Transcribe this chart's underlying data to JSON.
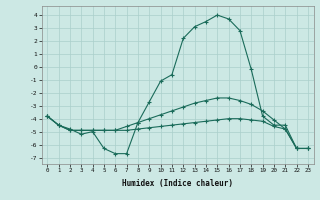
{
  "xlabel": "Humidex (Indice chaleur)",
  "background_color": "#cce8e4",
  "grid_color": "#aacfcb",
  "line_color": "#1a6b5a",
  "xlim": [
    -0.5,
    23.5
  ],
  "ylim": [
    -7.5,
    4.7
  ],
  "yticks": [
    -7,
    -6,
    -5,
    -4,
    -3,
    -2,
    -1,
    0,
    1,
    2,
    3,
    4
  ],
  "xticks": [
    0,
    1,
    2,
    3,
    4,
    5,
    6,
    7,
    8,
    9,
    10,
    11,
    12,
    13,
    14,
    15,
    16,
    17,
    18,
    19,
    20,
    21,
    22,
    23
  ],
  "line1_x": [
    0,
    1,
    2,
    3,
    4,
    5,
    6,
    7,
    8,
    9,
    10,
    11,
    12,
    13,
    14,
    15,
    16,
    17,
    18,
    19,
    20,
    21,
    22,
    23
  ],
  "line1_y": [
    -3.8,
    -4.5,
    -4.8,
    -5.2,
    -5.0,
    -6.3,
    -6.7,
    -6.7,
    -4.3,
    -2.7,
    -1.1,
    -0.6,
    2.2,
    3.1,
    3.5,
    4.0,
    3.7,
    2.8,
    -0.2,
    -3.8,
    -4.5,
    -4.5,
    -6.3,
    -6.3
  ],
  "line2_x": [
    0,
    1,
    2,
    3,
    4,
    5,
    6,
    7,
    8,
    9,
    10,
    11,
    12,
    13,
    14,
    15,
    16,
    17,
    18,
    19,
    20,
    21,
    22,
    23
  ],
  "line2_y": [
    -3.8,
    -4.5,
    -4.9,
    -4.9,
    -4.9,
    -4.9,
    -4.9,
    -4.9,
    -4.8,
    -4.7,
    -4.6,
    -4.5,
    -4.4,
    -4.3,
    -4.2,
    -4.1,
    -4.0,
    -4.0,
    -4.1,
    -4.2,
    -4.6,
    -4.8,
    -6.3,
    -6.3
  ],
  "line3_x": [
    0,
    1,
    2,
    3,
    4,
    5,
    6,
    7,
    8,
    9,
    10,
    11,
    12,
    13,
    14,
    15,
    16,
    17,
    18,
    19,
    20,
    21,
    22,
    23
  ],
  "line3_y": [
    -3.8,
    -4.5,
    -4.9,
    -4.9,
    -4.9,
    -4.9,
    -4.9,
    -4.6,
    -4.3,
    -4.0,
    -3.7,
    -3.4,
    -3.1,
    -2.8,
    -2.6,
    -2.4,
    -2.4,
    -2.6,
    -2.9,
    -3.4,
    -4.1,
    -4.8,
    -6.3,
    -6.3
  ]
}
